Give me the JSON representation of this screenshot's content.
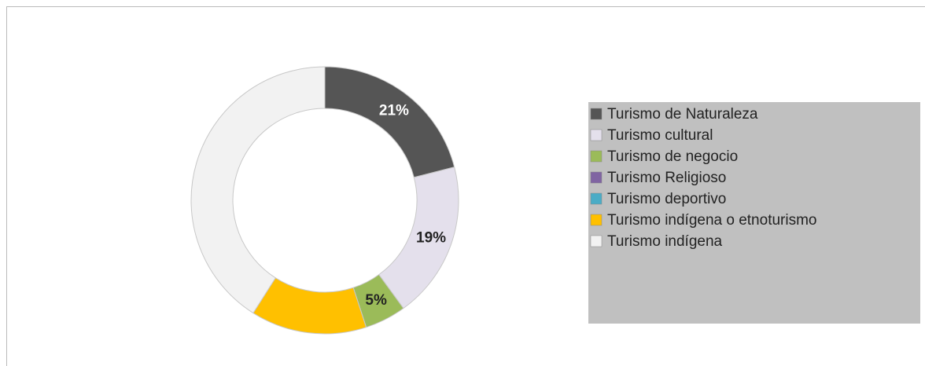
{
  "chart_data": {
    "type": "donut",
    "categories": [
      "Turismo de Naturaleza",
      "Turismo cultural",
      "Turismo de negocio",
      "Turismo Religioso",
      "Turismo deportivo",
      "Turismo indígena o etnoturismo",
      "Turismo indígena"
    ],
    "values": [
      21,
      19,
      5,
      0,
      0,
      14,
      41
    ],
    "value_labels": [
      "21%",
      "19%",
      "5%",
      null,
      null,
      null,
      null
    ],
    "colors": [
      "#555555",
      "#e4e0ec",
      "#9bbb59",
      "#8064a2",
      "#4bacc6",
      "#ffc000",
      "#f2f2f2"
    ],
    "legend": "right"
  }
}
